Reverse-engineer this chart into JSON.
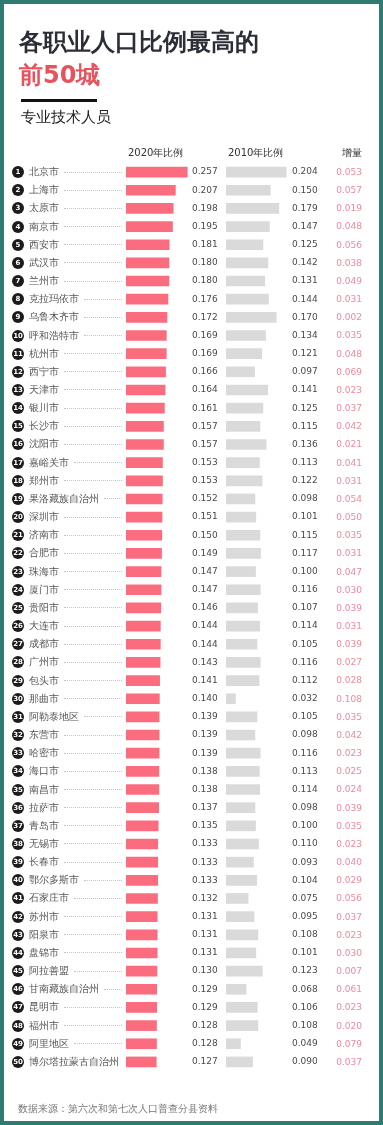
{
  "chart_data": [
    {
      "type": "bar",
      "orientation": "horizontal",
      "title": "各职业人口比例最高的前50城",
      "subtitle": "专业技术人员",
      "annotations": [
        "数据来源：第六次和第七次人口普查分县资料"
      ],
      "categories": [
        "1 北京市",
        "2 上海市",
        "3 太原市",
        "4 南京市",
        "5 西安市",
        "6 武汉市",
        "7 兰州市",
        "8 克拉玛依市",
        "9 乌鲁木齐市",
        "10 呼和浩特市",
        "11 杭州市",
        "12 西宁市",
        "13 天津市",
        "14 银川市",
        "15 长沙市",
        "16 沈阳市",
        "17 嘉峪关市",
        "18 郑州市",
        "19 果洛藏族自治州",
        "20 深圳市",
        "21 济南市",
        "22 合肥市",
        "23 珠海市",
        "24 厦门市",
        "25 贵阳市",
        "26 大连市",
        "27 成都市",
        "28 广州市",
        "29 包头市",
        "30 那曲市",
        "31 阿勒泰地区",
        "32 东营市",
        "33 哈密市",
        "34 海口市",
        "35 南昌市",
        "36 拉萨市",
        "37 青岛市",
        "38 无锡市",
        "39 长春市",
        "40 鄂尔多斯市",
        "41 石家庄市",
        "42 苏州市",
        "43 阳泉市",
        "44 盘锦市",
        "45 阿拉善盟",
        "46 甘南藏族自治州",
        "47 昆明市",
        "48 福州市",
        "49 阿里地区",
        "50 博尔塔拉蒙古自治州"
      ],
      "series": [
        {
          "name": "2020年比例",
          "color": "#fb6c7f",
          "values": [
            0.257,
            0.207,
            0.198,
            0.195,
            0.181,
            0.18,
            0.18,
            0.176,
            0.172,
            0.169,
            0.169,
            0.166,
            0.164,
            0.161,
            0.157,
            0.157,
            0.153,
            0.153,
            0.152,
            0.151,
            0.15,
            0.149,
            0.147,
            0.147,
            0.146,
            0.144,
            0.144,
            0.143,
            0.141,
            0.14,
            0.139,
            0.139,
            0.139,
            0.138,
            0.138,
            0.137,
            0.135,
            0.133,
            0.133,
            0.133,
            0.132,
            0.131,
            0.131,
            0.131,
            0.13,
            0.129,
            0.129,
            0.128,
            0.128,
            0.127
          ],
          "value_labels": [
            "0.257",
            "0.207",
            "0.198",
            "0.195",
            "0.181",
            "0.180",
            "0.180",
            "0.176",
            "0.172",
            "0.169",
            "0.169",
            "0.166",
            "0.164",
            "0.161",
            "0.157",
            "0.157",
            "0.153",
            "0.153",
            "0.152",
            "0.151",
            "0.150",
            "0.149",
            "0.147",
            "0.147",
            "0.146",
            "0.144",
            "0.144",
            "0.143",
            "0.141",
            "0.140",
            "0.139",
            "0.139",
            "0.139",
            "0.138",
            "0.138",
            "0.137",
            "0.135",
            "0.133",
            "0.133",
            "0.133",
            "0.132",
            "0.131",
            "0.131",
            "0.131",
            "0.130",
            "0.129",
            "0.129",
            "0.128",
            "0.128",
            "0.127"
          ]
        }
      ],
      "xlim": [
        0,
        0.26
      ],
      "tick_labels": "y"
    },
    {
      "type": "bar",
      "orientation": "horizontal",
      "series": [
        {
          "name": "2010年比例",
          "color": "#dadada",
          "values": [
            0.204,
            0.15,
            0.179,
            0.147,
            0.125,
            0.142,
            0.131,
            0.144,
            0.17,
            0.134,
            0.121,
            0.097,
            0.141,
            0.125,
            0.115,
            0.136,
            0.113,
            0.122,
            0.098,
            0.101,
            0.115,
            0.117,
            0.1,
            0.116,
            0.107,
            0.114,
            0.105,
            0.116,
            0.112,
            0.032,
            0.105,
            0.098,
            0.116,
            0.113,
            0.114,
            0.098,
            0.1,
            0.11,
            0.093,
            0.104,
            0.075,
            0.095,
            0.108,
            0.101,
            0.123,
            0.068,
            0.106,
            0.108,
            0.049,
            0.09
          ],
          "value_labels": [
            "0.204",
            "0.150",
            "0.179",
            "0.147",
            "0.125",
            "0.142",
            "0.131",
            "0.144",
            "0.170",
            "0.134",
            "0.121",
            "0.097",
            "0.141",
            "0.125",
            "0.115",
            "0.136",
            "0.113",
            "0.122",
            "0.098",
            "0.101",
            "0.115",
            "0.117",
            "0.100",
            "0.116",
            "0.107",
            "0.114",
            "0.105",
            "0.116",
            "0.112",
            "0.032",
            "0.105",
            "0.098",
            "0.116",
            "0.113",
            "0.114",
            "0.098",
            "0.100",
            "0.110",
            "0.093",
            "0.104",
            "0.075",
            "0.095",
            "0.108",
            "0.101",
            "0.123",
            "0.068",
            "0.106",
            "0.108",
            "0.049",
            "0.090"
          ]
        }
      ],
      "xlim": [
        0,
        0.21
      ],
      "tick_labels": false
    },
    {
      "type": "other",
      "series": [
        {
          "name": "增量",
          "values": [
            0.053,
            0.057,
            0.019,
            0.048,
            0.056,
            0.038,
            0.049,
            0.031,
            0.002,
            0.035,
            0.048,
            0.069,
            0.023,
            0.037,
            0.042,
            0.021,
            0.041,
            0.031,
            0.054,
            0.05,
            0.035,
            0.031,
            0.047,
            0.03,
            0.039,
            0.031,
            0.039,
            0.027,
            0.028,
            0.108,
            0.035,
            0.042,
            0.023,
            0.025,
            0.024,
            0.039,
            0.035,
            0.023,
            0.04,
            0.029,
            0.056,
            0.037,
            0.023,
            0.03,
            0.007,
            0.061,
            0.023,
            0.02,
            0.079,
            0.037
          ],
          "value_labels": [
            "0.053",
            "0.057",
            "0.019",
            "0.048",
            "0.056",
            "0.038",
            "0.049",
            "0.031",
            "0.002",
            "0.035",
            "0.048",
            "0.069",
            "0.023",
            "0.037",
            "0.042",
            "0.021",
            "0.041",
            "0.031",
            "0.054",
            "0.050",
            "0.035",
            "0.031",
            "0.047",
            "0.030",
            "0.039",
            "0.031",
            "0.039",
            "0.027",
            "0.028",
            "0.108",
            "0.035",
            "0.042",
            "0.023",
            "0.025",
            "0.024",
            "0.039",
            "0.035",
            "0.023",
            "0.040",
            "0.029",
            "0.056",
            "0.037",
            "0.023",
            "0.030",
            "0.007",
            "0.061",
            "0.023",
            "0.020",
            "0.079",
            "0.037"
          ]
        }
      ]
    }
  ]
}
